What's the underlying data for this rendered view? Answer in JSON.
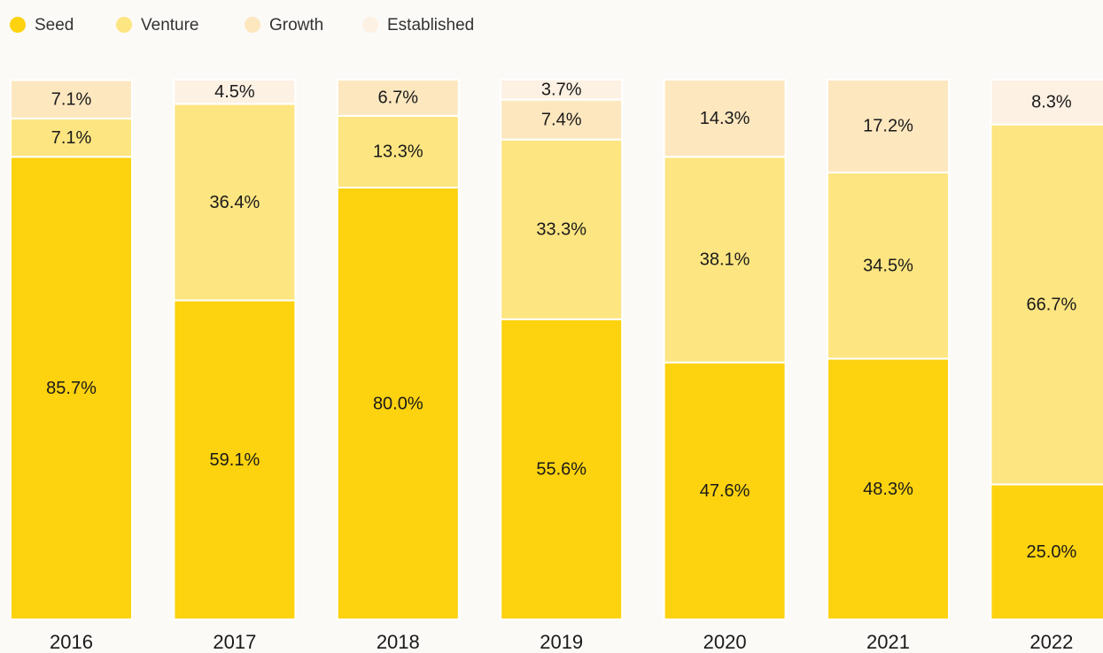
{
  "chart_data": {
    "type": "stacked_bar",
    "categories": [
      "2016",
      "2017",
      "2018",
      "2019",
      "2020",
      "2021",
      "2022"
    ],
    "ylim": [
      0,
      100
    ],
    "series": [
      {
        "name": "Seed",
        "color": "#fdd20f",
        "values": [
          85.7,
          59.1,
          80.0,
          55.6,
          47.6,
          48.3,
          25.0
        ],
        "value_labels": [
          "85.7%",
          "59.1%",
          "80.0%",
          "55.6%",
          "47.6%",
          "48.3%",
          "25.0%"
        ]
      },
      {
        "name": "Venture",
        "color": "#fde581",
        "values": [
          7.1,
          36.4,
          13.3,
          33.3,
          38.1,
          34.5,
          66.7
        ],
        "value_labels": [
          "7.1%",
          "36.4%",
          "13.3%",
          "33.3%",
          "38.1%",
          "34.5%",
          "66.7%"
        ]
      },
      {
        "name": "Growth",
        "color": "#fde7bf",
        "values": [
          7.1,
          null,
          6.7,
          7.4,
          14.3,
          17.2,
          null
        ],
        "value_labels": [
          "7.1%",
          null,
          "6.7%",
          "7.4%",
          "14.3%",
          "17.2%",
          null
        ]
      },
      {
        "name": "Established",
        "color": "#fdf1e3",
        "values": [
          null,
          4.5,
          null,
          3.7,
          null,
          null,
          8.3
        ],
        "value_labels": [
          null,
          "4.5%",
          null,
          "3.7%",
          null,
          null,
          "8.3%"
        ]
      }
    ]
  }
}
